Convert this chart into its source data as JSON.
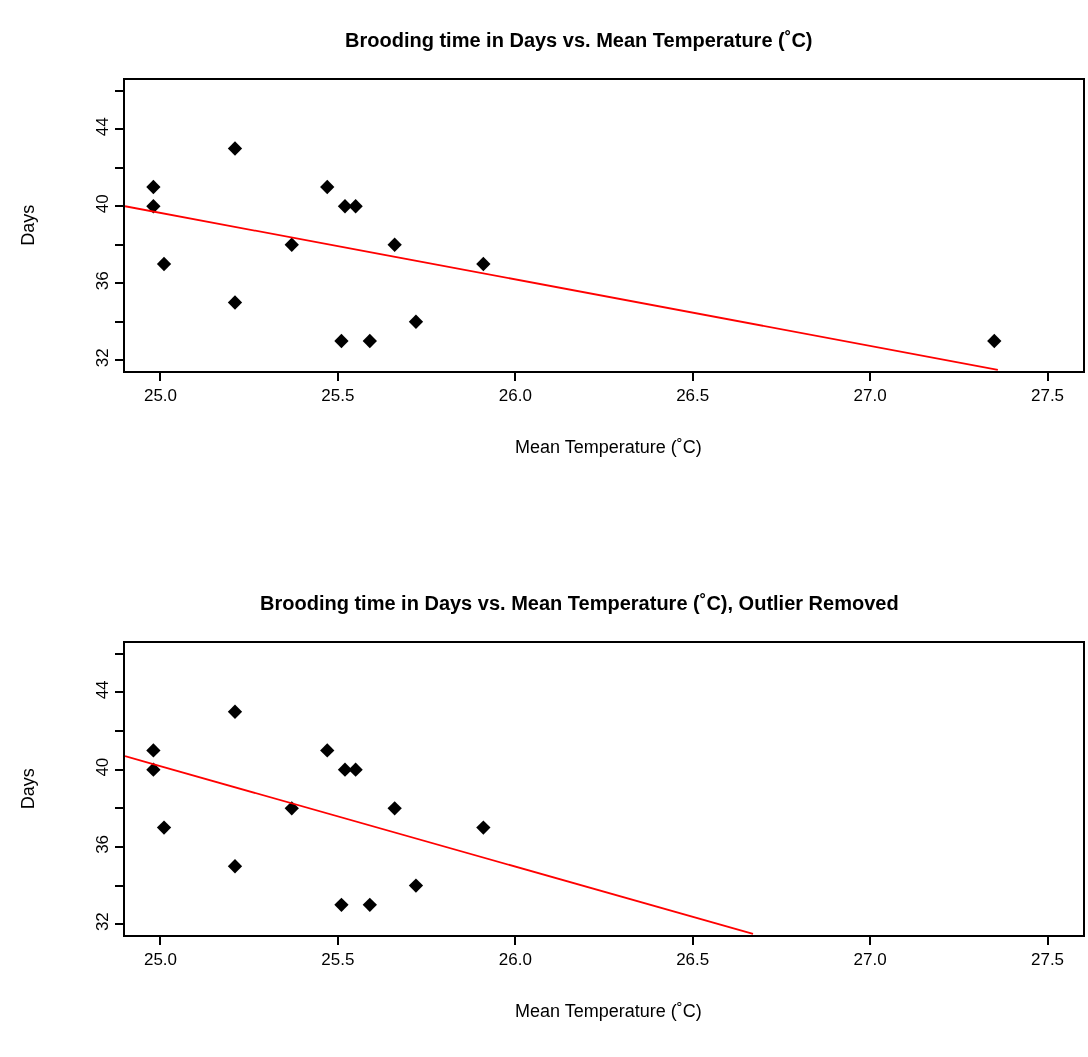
{
  "chart_data": [
    {
      "type": "scatter",
      "title": "Brooding time in Days vs. Mean Temperature (˚C)",
      "xlabel": "Mean Temperature (˚C)",
      "ylabel": "Days",
      "marker": "diamond",
      "xlim": [
        24.9,
        27.6
      ],
      "ylim": [
        31.44,
        46.56
      ],
      "xticks": [
        {
          "value": 25,
          "label": "25.0"
        },
        25.5,
        {
          "value": 26,
          "label": "26.0"
        },
        26.5,
        {
          "value": 27,
          "label": "27.0"
        },
        27.5
      ],
      "yticks": [
        32,
        {
          "value": 34,
          "label": null
        },
        36,
        {
          "value": 38,
          "label": null
        },
        40,
        {
          "value": 42,
          "label": null
        },
        44,
        {
          "value": 46,
          "label": null
        }
      ],
      "series": [
        {
          "color": "#000000",
          "x": [
            24.98,
            24.98,
            25.01,
            25.21,
            25.21,
            25.37,
            25.47,
            25.52,
            25.55,
            25.51,
            25.59,
            25.66,
            25.72,
            25.91,
            27.35
          ],
          "values": [
            41,
            40,
            37,
            43,
            35,
            38,
            41,
            40,
            40,
            33,
            33,
            38,
            34,
            37,
            33
          ]
        },
        {
          "type": "line",
          "color": "#ff0000",
          "marker": "none",
          "x": [
            24.9,
            27.36
          ],
          "values": [
            40.0,
            31.5
          ]
        }
      ]
    },
    {
      "type": "scatter",
      "title": "Brooding time in Days vs. Mean Temperature (˚C), Outlier Removed",
      "xlabel": "Mean Temperature (˚C)",
      "ylabel": "Days",
      "marker": "diamond",
      "xlim": [
        24.9,
        27.6
      ],
      "ylim": [
        31.44,
        46.56
      ],
      "xticks": [
        {
          "value": 25,
          "label": "25.0"
        },
        25.5,
        {
          "value": 26,
          "label": "26.0"
        },
        26.5,
        {
          "value": 27,
          "label": "27.0"
        },
        27.5
      ],
      "yticks": [
        32,
        {
          "value": 34,
          "label": null
        },
        36,
        {
          "value": 38,
          "label": null
        },
        40,
        {
          "value": 42,
          "label": null
        },
        44,
        {
          "value": 46,
          "label": null
        }
      ],
      "series": [
        {
          "color": "#000000",
          "x": [
            24.98,
            24.98,
            25.01,
            25.21,
            25.21,
            25.37,
            25.47,
            25.52,
            25.55,
            25.51,
            25.59,
            25.66,
            25.72,
            25.91
          ],
          "values": [
            41,
            40,
            37,
            43,
            35,
            38,
            41,
            40,
            40,
            33,
            33,
            38,
            34,
            37
          ]
        },
        {
          "type": "line",
          "color": "#ff0000",
          "marker": "none",
          "x": [
            24.9,
            26.67
          ],
          "values": [
            40.7,
            31.5
          ]
        }
      ]
    }
  ]
}
